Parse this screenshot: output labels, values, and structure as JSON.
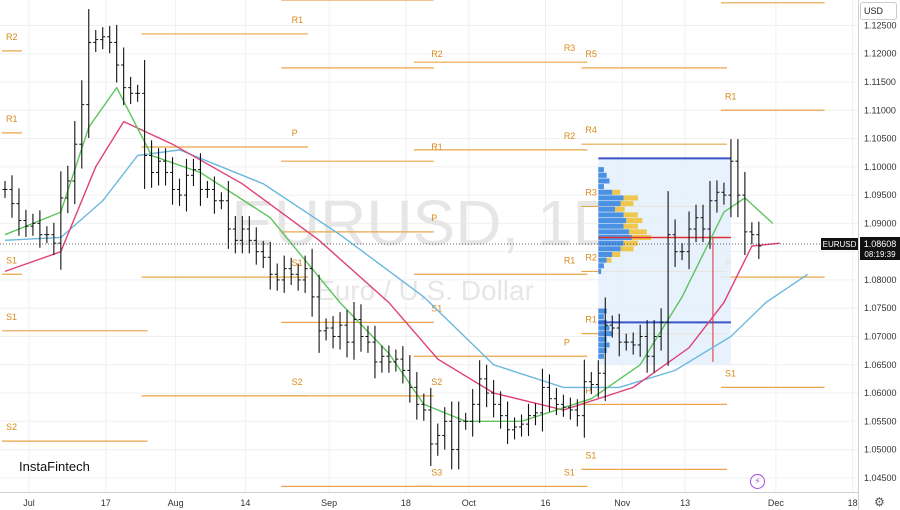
{
  "brand": "InstaFintech",
  "currency_button": "USD",
  "watermark": {
    "symbol": "EURUSD, 1D",
    "description": "Euro / U.S. Dollar"
  },
  "price_tag": {
    "symbol": "EURUSD",
    "price": "1.08608",
    "countdown": "08:19:39"
  },
  "colors": {
    "pivot": "#e8a54a",
    "sma_green": "#5ec45e",
    "sma_red": "#e0407a",
    "sma_blue": "#6ab8e0",
    "candle": "#111111",
    "vp_box": "#3a55c8",
    "poc": "#e03030",
    "vp_hist": "#3a86e0",
    "vp_hist_hl": "#f0c030"
  },
  "chart_data": {
    "type": "ohlc",
    "timeframe": "1D",
    "ylim": [
      1.0425,
      1.1295
    ],
    "y_ticks": [
      "1.12500",
      "1.12000",
      "1.11500",
      "1.11000",
      "1.10500",
      "1.10000",
      "1.09500",
      "1.09000",
      "1.08500",
      "1.08000",
      "1.07500",
      "1.07000",
      "1.06500",
      "1.06000",
      "1.05500",
      "1.05000",
      "1.04500"
    ],
    "x_ticks": [
      {
        "label": "Jul",
        "idx": 0
      },
      {
        "label": "17",
        "idx": 11
      },
      {
        "label": "Aug",
        "idx": 21
      },
      {
        "label": "14",
        "idx": 31
      },
      {
        "label": "Sep",
        "idx": 43
      },
      {
        "label": "18",
        "idx": 54
      },
      {
        "label": "Oct",
        "idx": 63
      },
      {
        "label": "16",
        "idx": 74
      },
      {
        "label": "Nov",
        "idx": 85
      },
      {
        "label": "13",
        "idx": 94
      },
      {
        "label": "Dec",
        "idx": 107
      },
      {
        "label": "18",
        "idx": 118
      }
    ],
    "last_idx": 108,
    "closes": [
      1.096,
      1.0935,
      1.0905,
      1.0895,
      1.09,
      1.088,
      1.088,
      1.0865,
      1.0945,
      1.0975,
      1.104,
      1.111,
      1.122,
      1.1225,
      1.123,
      1.122,
      1.118,
      1.114,
      1.113,
      1.113,
      1.102,
      1.099,
      1.101,
      1.099,
      1.096,
      1.095,
      1.0985,
      1.0995,
      1.096,
      1.096,
      1.094,
      1.094,
      1.089,
      1.087,
      1.089,
      1.087,
      1.085,
      1.084,
      1.081,
      1.08,
      1.082,
      1.081,
      1.08,
      1.082,
      1.077,
      1.071,
      1.0715,
      1.07,
      1.072,
      1.069,
      1.073,
      1.07,
      1.069,
      1.0655,
      1.0665,
      1.0655,
      1.066,
      1.064,
      1.061,
      1.058,
      1.057,
      1.051,
      1.0525,
      1.055,
      1.05,
      1.055,
      1.055,
      1.058,
      1.0625,
      1.06,
      1.058,
      1.056,
      1.0535,
      1.054,
      1.0545,
      1.056,
      1.0565,
      1.061,
      1.059,
      1.058,
      1.0575,
      1.057,
      1.056,
      1.062,
      1.0615,
      1.0635,
      1.072,
      1.0715,
      1.069,
      1.069,
      1.0685,
      1.07,
      1.0665,
      1.07,
      1.0725,
      1.088,
      1.085,
      1.085,
      1.089,
      1.091,
      1.089,
      1.094,
      1.0955,
      1.095,
      1.101,
      1.095,
      1.0885,
      1.088,
      1.086
    ],
    "sma_green": [
      [
        0,
        1.088
      ],
      [
        8,
        1.092
      ],
      [
        12,
        1.107
      ],
      [
        16,
        1.114
      ],
      [
        21,
        1.102
      ],
      [
        28,
        1.099
      ],
      [
        38,
        1.091
      ],
      [
        48,
        1.076
      ],
      [
        55,
        1.067
      ],
      [
        60,
        1.058
      ],
      [
        66,
        1.055
      ],
      [
        74,
        1.055
      ],
      [
        84,
        1.059
      ],
      [
        91,
        1.065
      ],
      [
        97,
        1.077
      ],
      [
        103,
        1.092
      ],
      [
        106,
        1.0945
      ],
      [
        110,
        1.09
      ]
    ],
    "sma_red": [
      [
        0,
        1.0815
      ],
      [
        8,
        1.085
      ],
      [
        13,
        1.1
      ],
      [
        17,
        1.108
      ],
      [
        24,
        1.104
      ],
      [
        34,
        1.097
      ],
      [
        45,
        1.087
      ],
      [
        55,
        1.076
      ],
      [
        62,
        1.066
      ],
      [
        70,
        1.06
      ],
      [
        80,
        1.057
      ],
      [
        90,
        1.061
      ],
      [
        98,
        1.068
      ],
      [
        103,
        1.076
      ],
      [
        107,
        1.086
      ],
      [
        111,
        1.0865
      ]
    ],
    "sma_blue": [
      [
        0,
        1.087
      ],
      [
        8,
        1.0875
      ],
      [
        14,
        1.094
      ],
      [
        19,
        1.102
      ],
      [
        25,
        1.103
      ],
      [
        37,
        1.097
      ],
      [
        48,
        1.088
      ],
      [
        60,
        1.077
      ],
      [
        70,
        1.065
      ],
      [
        80,
        1.061
      ],
      [
        88,
        1.061
      ],
      [
        96,
        1.064
      ],
      [
        104,
        1.07
      ],
      [
        109,
        1.076
      ],
      [
        115,
        1.081
      ]
    ],
    "pivot_levels": [
      {
        "label": "R2",
        "price": 1.1205,
        "from": 0,
        "to": 2
      },
      {
        "label": "R1",
        "price": 1.106,
        "from": 0,
        "to": 2
      },
      {
        "label": "S1",
        "price": 1.081,
        "from": 0,
        "to": 2
      },
      {
        "label": "S1",
        "price": 1.071,
        "from": 0,
        "to": 20
      },
      {
        "label": "S2",
        "price": 1.0515,
        "from": 0,
        "to": 20
      },
      {
        "label": "R1",
        "price": 1.1235,
        "from": 20,
        "to": 43
      },
      {
        "label": "P",
        "price": 1.1035,
        "from": 20,
        "to": 43
      },
      {
        "label": "S1",
        "price": 1.0805,
        "from": 20,
        "to": 43
      },
      {
        "label": "S2",
        "price": 1.0595,
        "from": 20,
        "to": 43
      },
      {
        "label": "R3",
        "price": 1.1295,
        "from": 40,
        "to": 61
      },
      {
        "label": "R2",
        "price": 1.1175,
        "from": 40,
        "to": 61
      },
      {
        "label": "R1",
        "price": 1.101,
        "from": 40,
        "to": 61
      },
      {
        "label": "P",
        "price": 1.0885,
        "from": 40,
        "to": 61
      },
      {
        "label": "S1",
        "price": 1.0725,
        "from": 40,
        "to": 61
      },
      {
        "label": "S2",
        "price": 1.0595,
        "from": 40,
        "to": 61
      },
      {
        "label": "S3",
        "price": 1.0435,
        "from": 40,
        "to": 61
      },
      {
        "label": "R3",
        "price": 1.1185,
        "from": 59,
        "to": 83
      },
      {
        "label": "R2",
        "price": 1.103,
        "from": 59,
        "to": 83
      },
      {
        "label": "R1",
        "price": 1.081,
        "from": 59,
        "to": 83
      },
      {
        "label": "P",
        "price": 1.0665,
        "from": 59,
        "to": 83
      },
      {
        "label": "S1",
        "price": 1.0435,
        "from": 59,
        "to": 83
      },
      {
        "label": "R5",
        "price": 1.1175,
        "from": 83,
        "to": 103
      },
      {
        "label": "R4",
        "price": 1.104,
        "from": 83,
        "to": 103
      },
      {
        "label": "R3",
        "price": 1.093,
        "from": 83,
        "to": 103
      },
      {
        "label": "R2",
        "price": 1.0815,
        "from": 83,
        "to": 103
      },
      {
        "label": "R1",
        "price": 1.0705,
        "from": 83,
        "to": 103
      },
      {
        "label": "P",
        "price": 1.058,
        "from": 83,
        "to": 103
      },
      {
        "label": "S1",
        "price": 1.0465,
        "from": 83,
        "to": 103
      },
      {
        "label": "R2",
        "price": 1.129,
        "from": 103,
        "to": 117
      },
      {
        "label": "R1",
        "price": 1.11,
        "from": 103,
        "to": 117
      },
      {
        "label": "P",
        "price": 1.0805,
        "from": 103,
        "to": 117
      },
      {
        "label": "S1",
        "price": 1.061,
        "from": 103,
        "to": 117
      }
    ],
    "volume_profile": {
      "from_idx": 85,
      "to_idx": 104,
      "top": 1.1015,
      "bottom": 1.065,
      "value_area_high": 1.086,
      "value_area_low": 1.0725,
      "poc": 1.0875,
      "bars": [
        [
          1.0995,
          2
        ],
        [
          1.0985,
          3
        ],
        [
          1.0975,
          4
        ],
        [
          1.0965,
          2
        ],
        [
          1.0955,
          5
        ],
        [
          1.0945,
          9
        ],
        [
          1.0935,
          8
        ],
        [
          1.0925,
          6
        ],
        [
          1.0915,
          9
        ],
        [
          1.0905,
          10
        ],
        [
          1.0895,
          9
        ],
        [
          1.0885,
          11
        ],
        [
          1.0875,
          12
        ],
        [
          1.0865,
          9
        ],
        [
          1.0855,
          8
        ],
        [
          1.0845,
          5
        ],
        [
          1.0835,
          3
        ],
        [
          1.0825,
          2
        ],
        [
          1.0815,
          1
        ],
        [
          1.0745,
          3
        ],
        [
          1.0735,
          2
        ],
        [
          1.0725,
          3
        ],
        [
          1.0715,
          4
        ],
        [
          1.0705,
          5
        ],
        [
          1.0695,
          3
        ],
        [
          1.0685,
          4
        ],
        [
          1.0675,
          3
        ],
        [
          1.0665,
          2
        ]
      ]
    }
  }
}
